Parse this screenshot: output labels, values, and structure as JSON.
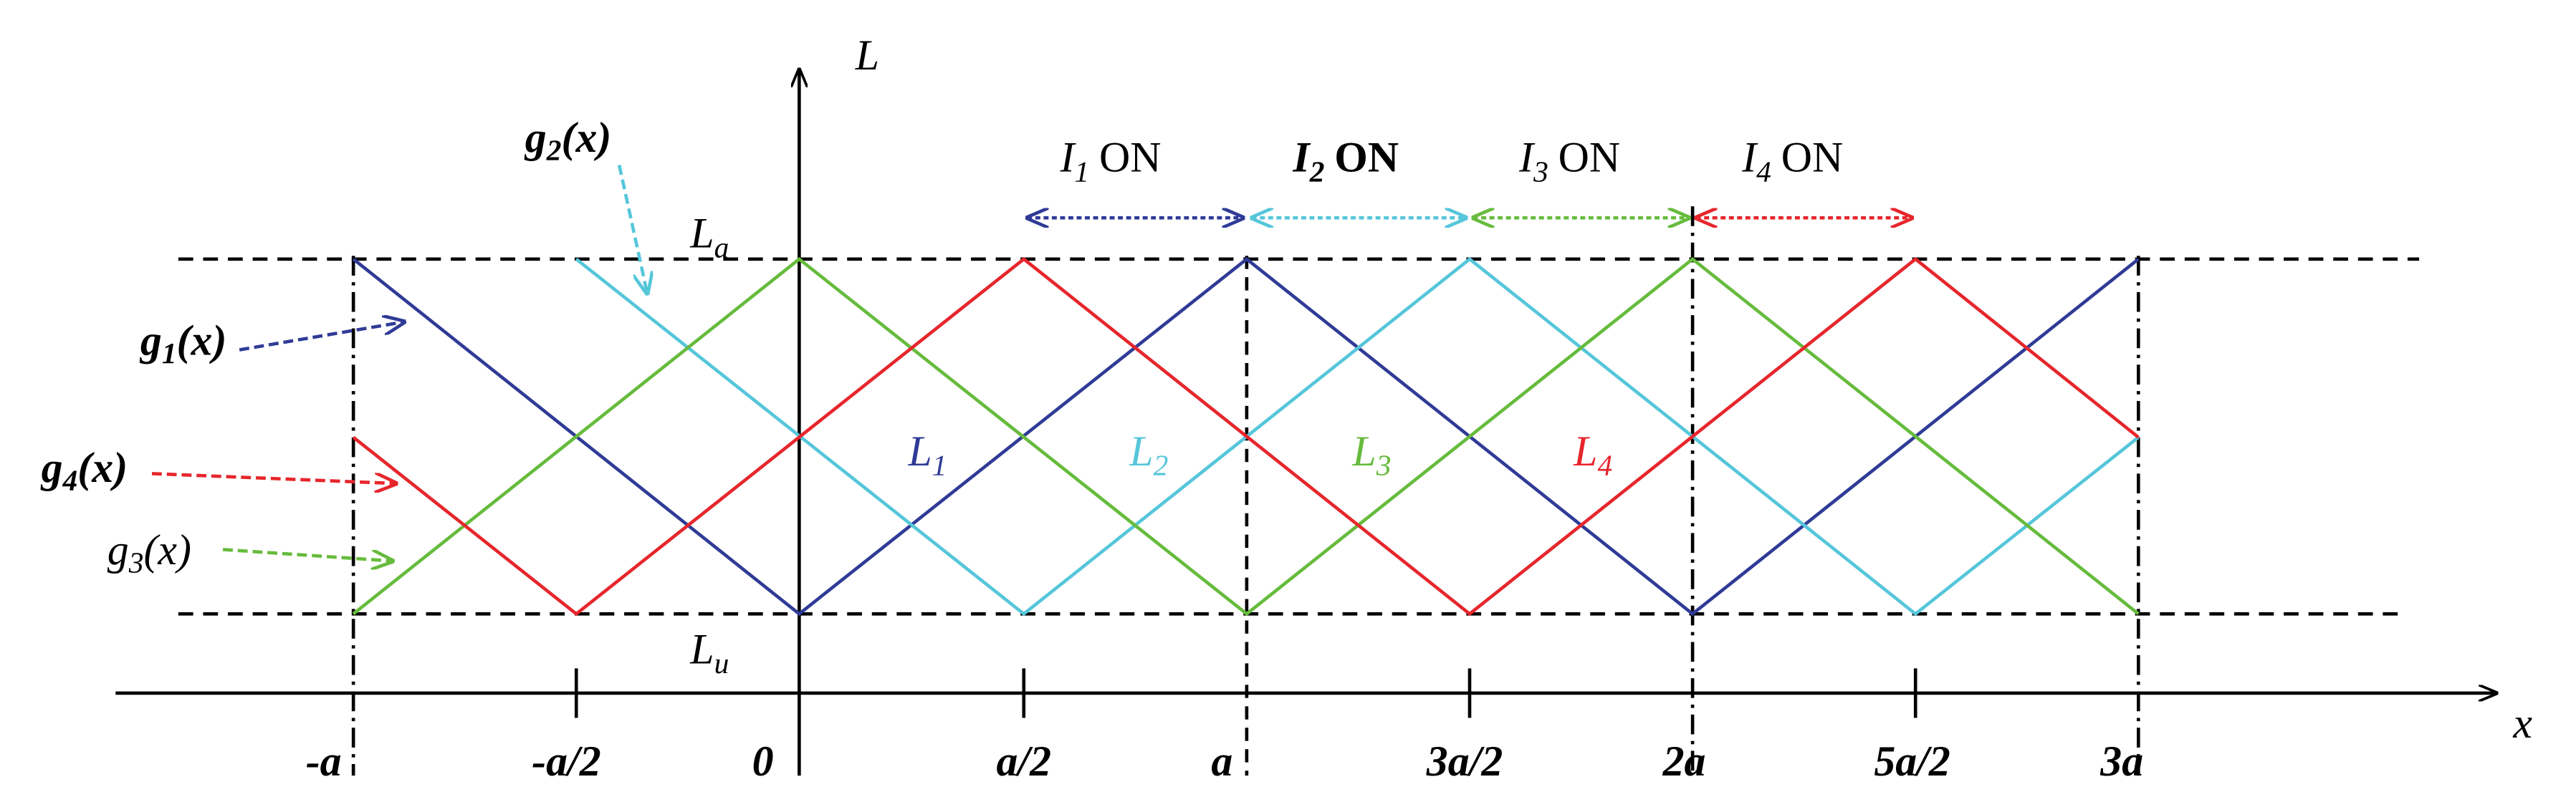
{
  "axes": {
    "y_label": "L",
    "x_label": "x"
  },
  "levels": {
    "upper": {
      "base": "L",
      "sub": "a"
    },
    "lower": {
      "base": "L",
      "sub": "u"
    }
  },
  "x_ticks": [
    "-a",
    "-a/2",
    "0",
    "a/2",
    "a",
    "3a/2",
    "2a",
    "5a/2",
    "3a"
  ],
  "curves": [
    {
      "base": "g",
      "sub": "1",
      "arg": "(x)"
    },
    {
      "base": "g",
      "sub": "2",
      "arg": "(x)"
    },
    {
      "base": "g",
      "sub": "3",
      "arg": "(x)"
    },
    {
      "base": "g",
      "sub": "4",
      "arg": "(x)"
    }
  ],
  "regions": [
    {
      "base": "L",
      "sub": "1"
    },
    {
      "base": "L",
      "sub": "2"
    },
    {
      "base": "L",
      "sub": "3"
    },
    {
      "base": "L",
      "sub": "4"
    }
  ],
  "switching": [
    {
      "base": "I",
      "sub": "1",
      "state": "ON"
    },
    {
      "base": "I",
      "sub": "2",
      "state": "ON"
    },
    {
      "base": "I",
      "sub": "3",
      "state": "ON"
    },
    {
      "base": "I",
      "sub": "4",
      "state": "ON"
    }
  ]
}
